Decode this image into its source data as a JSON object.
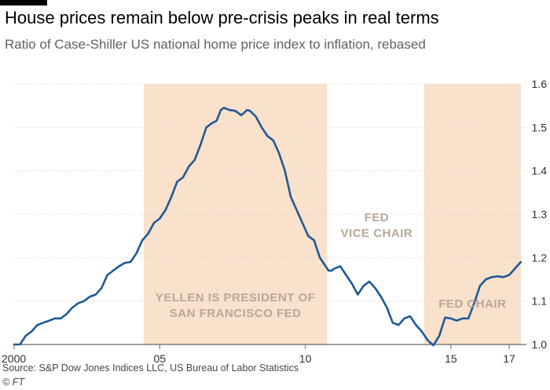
{
  "title": "House prices remain below pre-crisis peaks in real terms",
  "subtitle": "Ratio of Case-Shiller US national home price index to inflation, rebased",
  "source": "Source: S&P Dow Jones Indices LLC, US Bureau of Labor Statistics",
  "credit": "© FT",
  "colors": {
    "line": "#1f5a96",
    "band": "#f9e1cc",
    "grid": "#d9d4cf"
  },
  "chart_data": {
    "type": "line",
    "xlim": [
      2000,
      2017.4
    ],
    "ylim": [
      1.0,
      1.6
    ],
    "y_ticks": [
      1.0,
      1.1,
      1.2,
      1.3,
      1.4,
      1.5,
      1.6
    ],
    "y_tick_labels": [
      "1.0",
      "1.1",
      "1.2",
      "1.3",
      "1.4",
      "1.5",
      "1.6"
    ],
    "x_ticks": [
      2000,
      2005,
      2010,
      2015,
      2017
    ],
    "x_tick_labels": [
      "2000",
      "05",
      "10",
      "15",
      "17"
    ],
    "grid": true,
    "bands": [
      {
        "start": 2004.45,
        "end": 2010.75,
        "label": [
          "YELLEN IS PRESIDENT OF",
          "SAN FRANCISCO FED"
        ]
      },
      {
        "start": 2014.08,
        "end": 2017.4,
        "label": [
          "FED CHAIR"
        ]
      }
    ],
    "annotations": [
      {
        "x": 2012.45,
        "lines": [
          "FED",
          "VICE CHAIR"
        ]
      }
    ],
    "series": [
      {
        "points": [
          [
            2000.0,
            1.0
          ],
          [
            2000.2,
            1.0
          ],
          [
            2000.4,
            1.02
          ],
          [
            2000.6,
            1.03
          ],
          [
            2000.8,
            1.045
          ],
          [
            2001.0,
            1.05
          ],
          [
            2001.2,
            1.055
          ],
          [
            2001.4,
            1.06
          ],
          [
            2001.6,
            1.06
          ],
          [
            2001.8,
            1.07
          ],
          [
            2002.0,
            1.085
          ],
          [
            2002.2,
            1.095
          ],
          [
            2002.4,
            1.1
          ],
          [
            2002.6,
            1.11
          ],
          [
            2002.8,
            1.115
          ],
          [
            2003.0,
            1.13
          ],
          [
            2003.2,
            1.16
          ],
          [
            2003.4,
            1.17
          ],
          [
            2003.6,
            1.18
          ],
          [
            2003.8,
            1.188
          ],
          [
            2004.0,
            1.19
          ],
          [
            2004.2,
            1.21
          ],
          [
            2004.4,
            1.24
          ],
          [
            2004.6,
            1.255
          ],
          [
            2004.8,
            1.28
          ],
          [
            2005.0,
            1.29
          ],
          [
            2005.2,
            1.31
          ],
          [
            2005.4,
            1.34
          ],
          [
            2005.6,
            1.375
          ],
          [
            2005.8,
            1.385
          ],
          [
            2006.0,
            1.41
          ],
          [
            2006.2,
            1.425
          ],
          [
            2006.4,
            1.46
          ],
          [
            2006.6,
            1.5
          ],
          [
            2006.8,
            1.51
          ],
          [
            2006.95,
            1.515
          ],
          [
            2007.1,
            1.54
          ],
          [
            2007.2,
            1.545
          ],
          [
            2007.4,
            1.54
          ],
          [
            2007.6,
            1.538
          ],
          [
            2007.8,
            1.528
          ],
          [
            2008.0,
            1.54
          ],
          [
            2008.1,
            1.538
          ],
          [
            2008.3,
            1.525
          ],
          [
            2008.5,
            1.5
          ],
          [
            2008.7,
            1.48
          ],
          [
            2008.9,
            1.47
          ],
          [
            2009.1,
            1.44
          ],
          [
            2009.3,
            1.4
          ],
          [
            2009.5,
            1.34
          ],
          [
            2009.7,
            1.31
          ],
          [
            2009.9,
            1.28
          ],
          [
            2010.1,
            1.25
          ],
          [
            2010.3,
            1.24
          ],
          [
            2010.5,
            1.2
          ],
          [
            2010.6,
            1.19
          ],
          [
            2010.8,
            1.17
          ],
          [
            2010.9,
            1.17
          ],
          [
            2011.0,
            1.175
          ],
          [
            2011.2,
            1.18
          ],
          [
            2011.4,
            1.16
          ],
          [
            2011.6,
            1.14
          ],
          [
            2011.8,
            1.115
          ],
          [
            2012.0,
            1.135
          ],
          [
            2012.2,
            1.145
          ],
          [
            2012.4,
            1.13
          ],
          [
            2012.6,
            1.11
          ],
          [
            2012.8,
            1.085
          ],
          [
            2013.0,
            1.05
          ],
          [
            2013.2,
            1.045
          ],
          [
            2013.4,
            1.06
          ],
          [
            2013.6,
            1.065
          ],
          [
            2013.8,
            1.045
          ],
          [
            2014.0,
            1.03
          ],
          [
            2014.2,
            1.01
          ],
          [
            2014.4,
            0.998
          ],
          [
            2014.6,
            1.02
          ],
          [
            2014.8,
            1.062
          ],
          [
            2015.0,
            1.06
          ],
          [
            2015.2,
            1.055
          ],
          [
            2015.4,
            1.06
          ],
          [
            2015.6,
            1.06
          ],
          [
            2015.8,
            1.095
          ],
          [
            2016.0,
            1.135
          ],
          [
            2016.2,
            1.15
          ],
          [
            2016.4,
            1.155
          ],
          [
            2016.6,
            1.157
          ],
          [
            2016.8,
            1.155
          ],
          [
            2017.0,
            1.16
          ],
          [
            2017.2,
            1.175
          ],
          [
            2017.4,
            1.19
          ]
        ]
      }
    ]
  }
}
